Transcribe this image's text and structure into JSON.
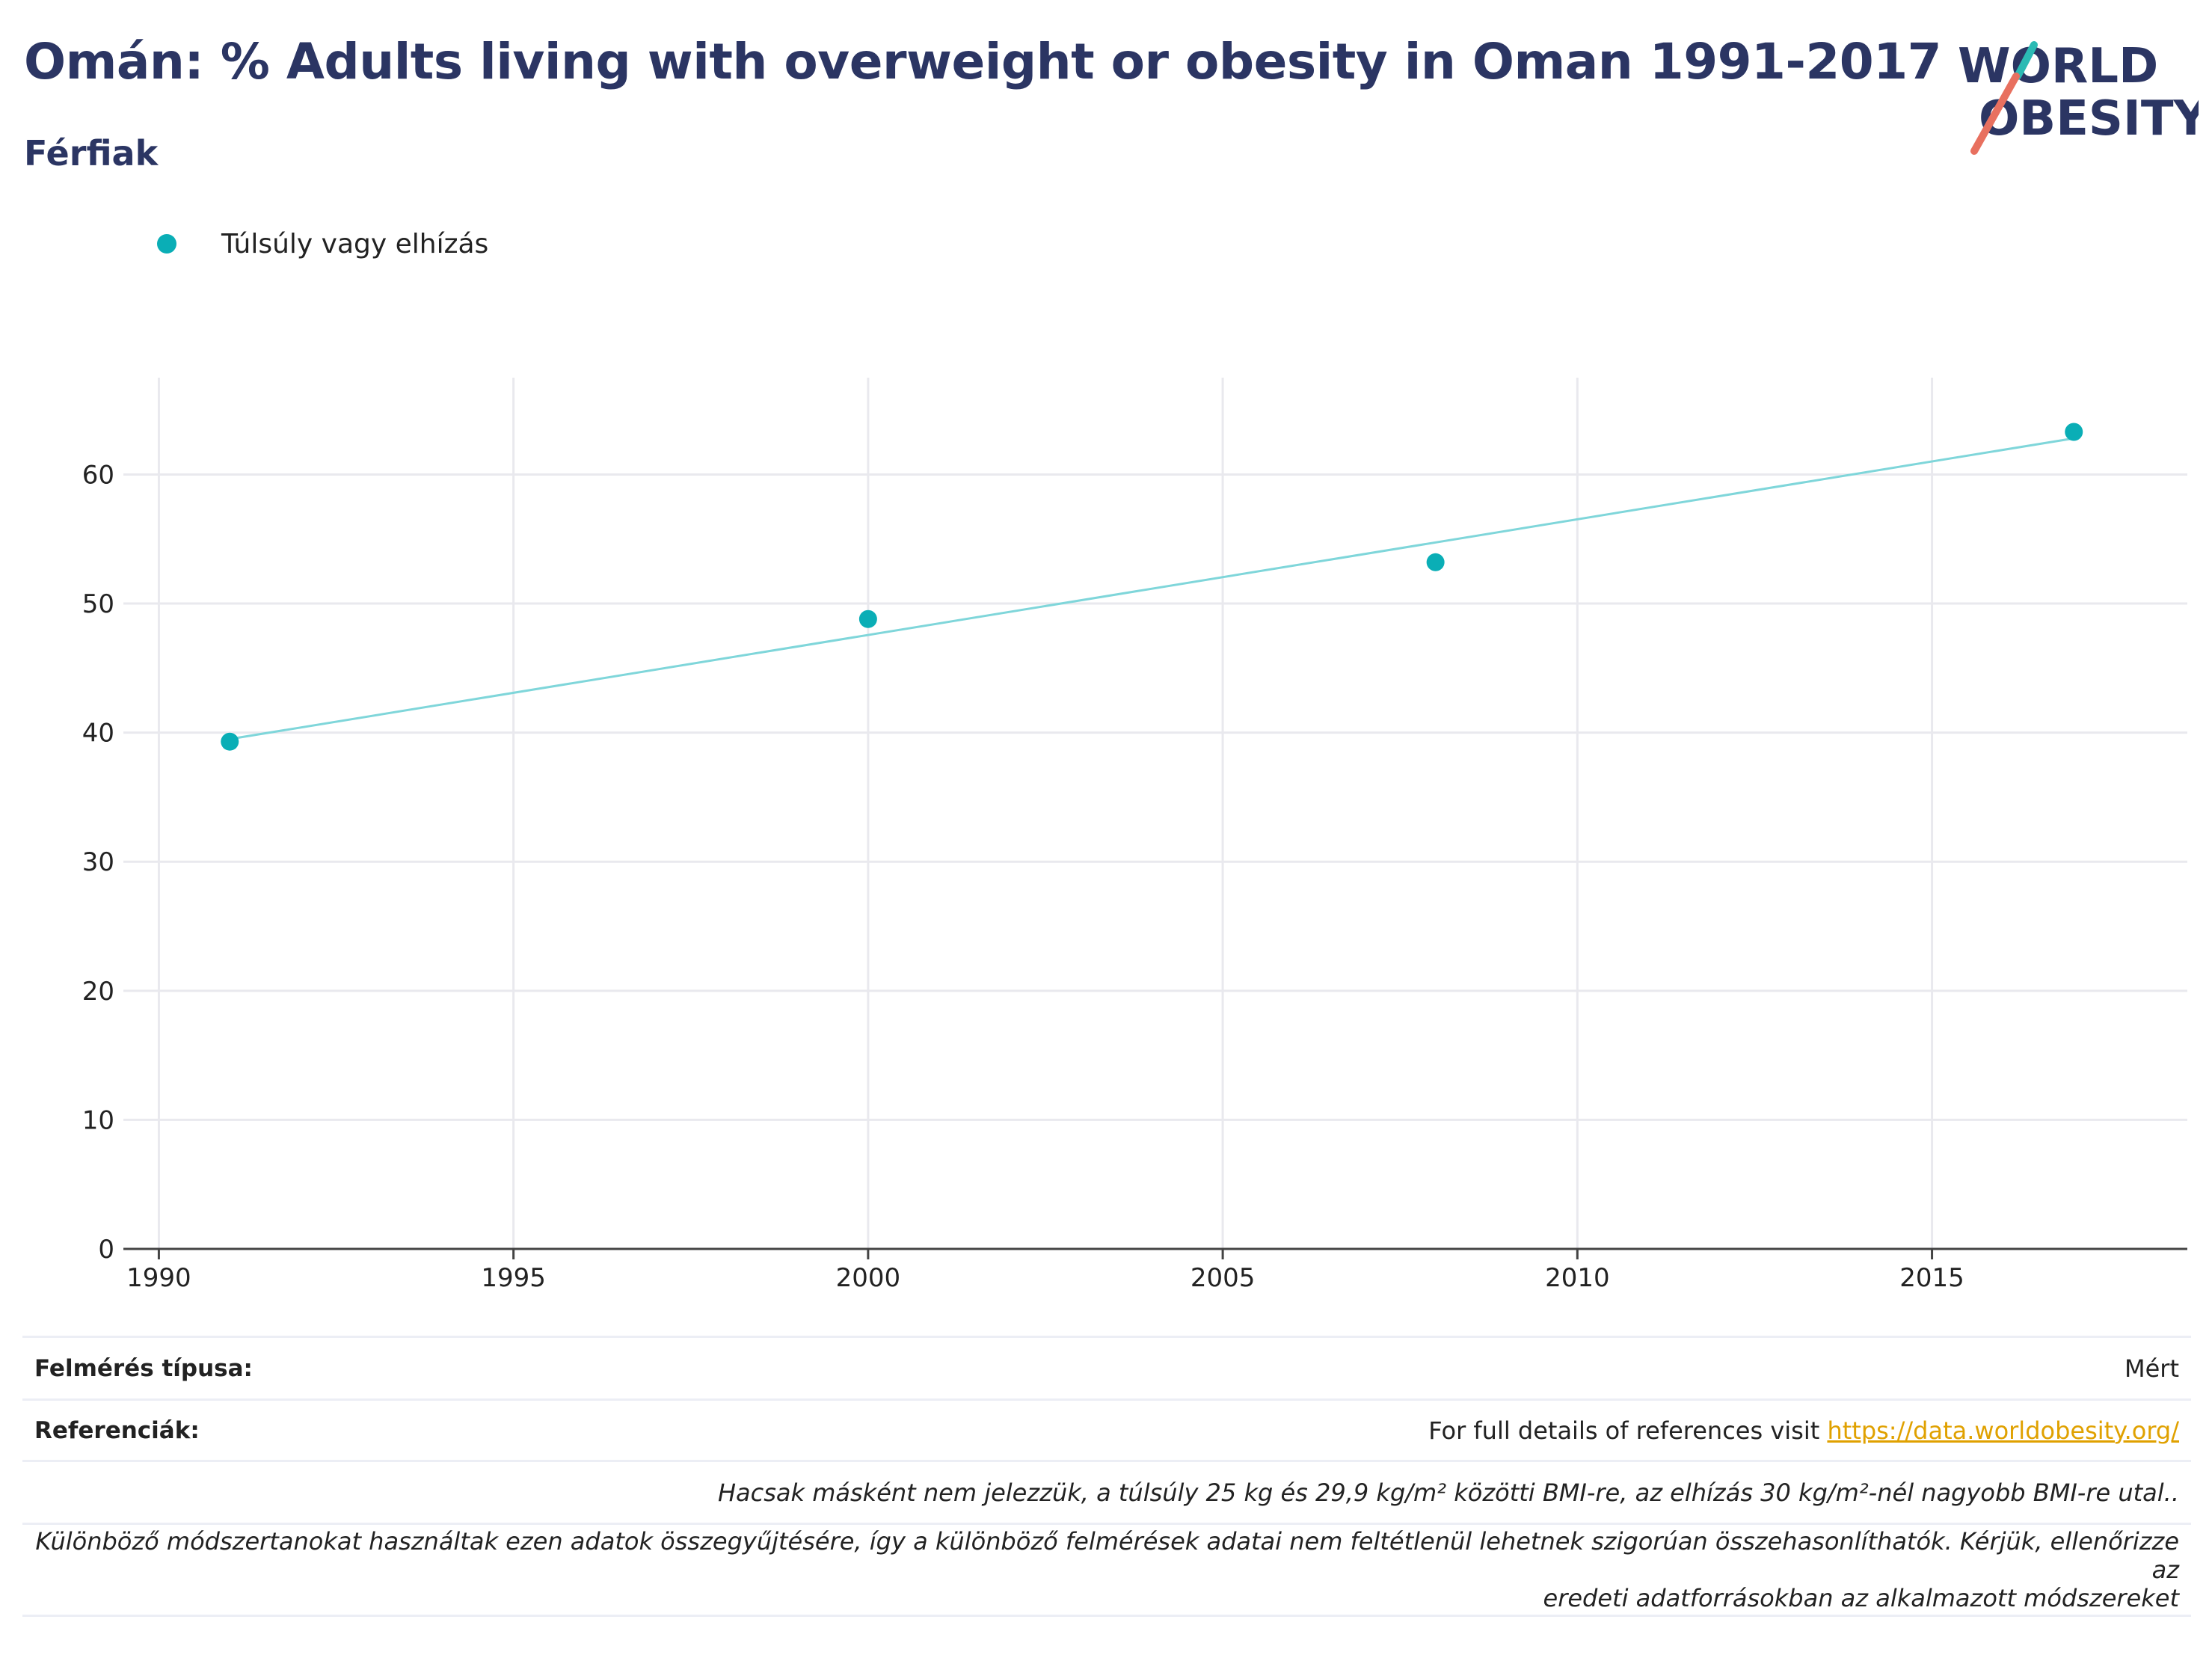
{
  "header": {
    "title": "Omán: % Adults living with overweight or obesity in Oman 1991-2017",
    "subtitle": "Férfiak"
  },
  "logo": {
    "line1": "WORLD",
    "line2": "OBESITY",
    "text_color": "#2b3563",
    "accent_teal": "#2bbab4",
    "accent_coral": "#e8705f"
  },
  "legend": {
    "label": "Túlsúly vagy elhízás",
    "color": "#0aaeb6"
  },
  "chart_data": {
    "type": "scatter",
    "series": [
      {
        "name": "Túlsúly vagy elhízás",
        "x": [
          1991,
          2000,
          2008,
          2017
        ],
        "y": [
          39.3,
          48.8,
          53.2,
          63.3
        ],
        "color": "#0aaeb6"
      }
    ],
    "trendline": {
      "x": [
        1991,
        2017
      ],
      "y": [
        39.5,
        62.8
      ],
      "color": "#7fd6da"
    },
    "xlim": [
      1989.5,
      2018.6
    ],
    "ylim": [
      0,
      67.5
    ],
    "x_ticks": [
      1990,
      1995,
      2000,
      2005,
      2010,
      2015
    ],
    "y_ticks": [
      0,
      10,
      20,
      30,
      40,
      50,
      60
    ],
    "grid": true,
    "xlabel": "",
    "ylabel": ""
  },
  "info": {
    "survey_type_label": "Felmérés típusa:",
    "survey_type_value": "Mért",
    "references_label": "Referenciák:",
    "references_text": "For full details of references visit ",
    "references_link": "https://data.worldobesity.org/",
    "note1": "Hacsak másként nem jelezzük, a túlsúly 25 kg és 29,9 kg/m² közötti BMI-re, az elhízás 30 kg/m²-nél nagyobb BMI-re utal..",
    "note2_line1": "Különböző módszertanokat használtak ezen adatok összegyűjtésére, így a különböző felmérések adatai nem feltétlenül lehetnek szigorúan összehasonlíthatók. Kérjük, ellenőrizze az",
    "note2_line2": "eredeti adatforrásokban az alkalmazott módszereket"
  }
}
